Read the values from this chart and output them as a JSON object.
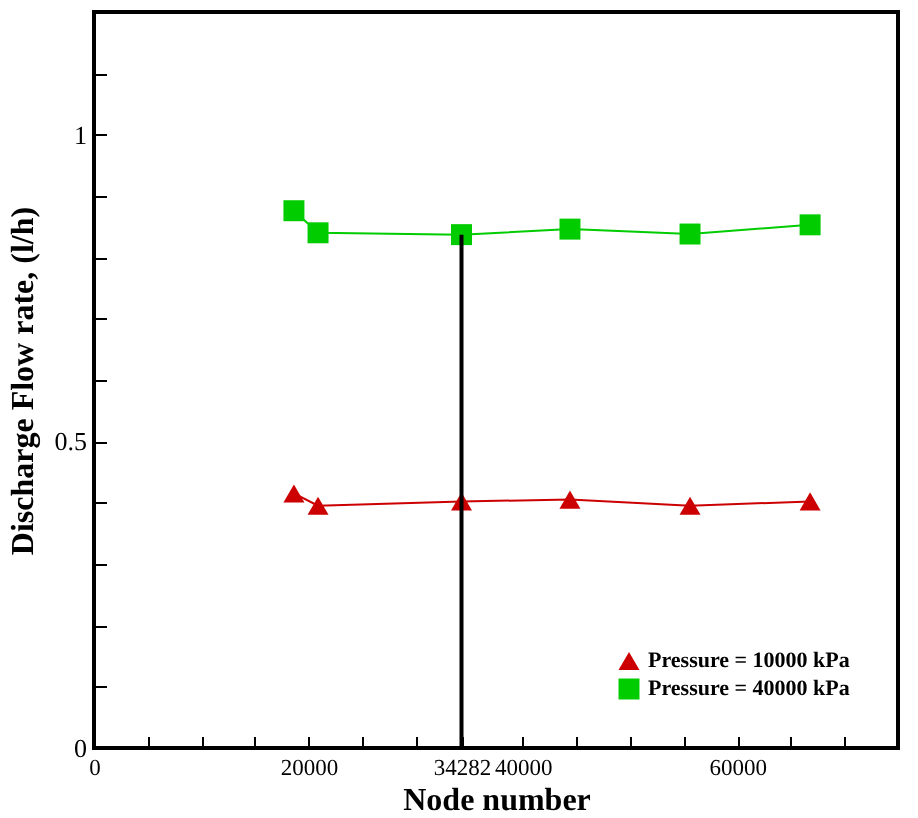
{
  "chart_data": {
    "type": "line",
    "xlabel": "Node number",
    "ylabel": "Discharge Flow rate, (l/h)",
    "xlim": [
      0,
      75000
    ],
    "ylim": [
      0,
      1.2
    ],
    "xticks": [
      0,
      {
        "value": 5000,
        "label": null
      },
      {
        "value": 10000,
        "label": null
      },
      {
        "value": 15000,
        "label": null
      },
      20000,
      {
        "value": 25000,
        "label": null
      },
      {
        "value": 30000,
        "label": null
      },
      34282,
      40000,
      {
        "value": 45000,
        "label": null
      },
      {
        "value": 50000,
        "label": null
      },
      {
        "value": 55000,
        "label": null
      },
      60000,
      {
        "value": 65000,
        "label": null
      },
      {
        "value": 70000,
        "label": null
      }
    ],
    "yticks": [
      0,
      {
        "value": 0.1,
        "label": null
      },
      {
        "value": 0.2,
        "label": null
      },
      {
        "value": 0.3,
        "label": null
      },
      {
        "value": 0.4,
        "label": null
      },
      0.5,
      {
        "value": 0.6,
        "label": null
      },
      {
        "value": 0.7,
        "label": null
      },
      {
        "value": 0.8,
        "label": null
      },
      {
        "value": 0.9,
        "label": null
      },
      1,
      {
        "value": 1.1,
        "label": null
      }
    ],
    "legend": "bottom right",
    "grid": false,
    "series": [
      {
        "name": "Pressure = 10000 kPa",
        "color": "#cc0000",
        "marker": "triangle",
        "x": [
          18650,
          20900,
          34282,
          44400,
          55600,
          66800
        ],
        "values": [
          0.415,
          0.395,
          0.402,
          0.405,
          0.395,
          0.402
        ]
      },
      {
        "name": "Pressure = 40000 kPa",
        "color": "#00cc00",
        "marker": "square",
        "x": [
          18650,
          20900,
          34282,
          44400,
          55600,
          66800
        ],
        "values": [
          0.876,
          0.84,
          0.837,
          0.846,
          0.838,
          0.853
        ]
      }
    ],
    "ref_lines": [
      {
        "axis": "x",
        "value": 34282,
        "color": "#000000"
      }
    ]
  }
}
